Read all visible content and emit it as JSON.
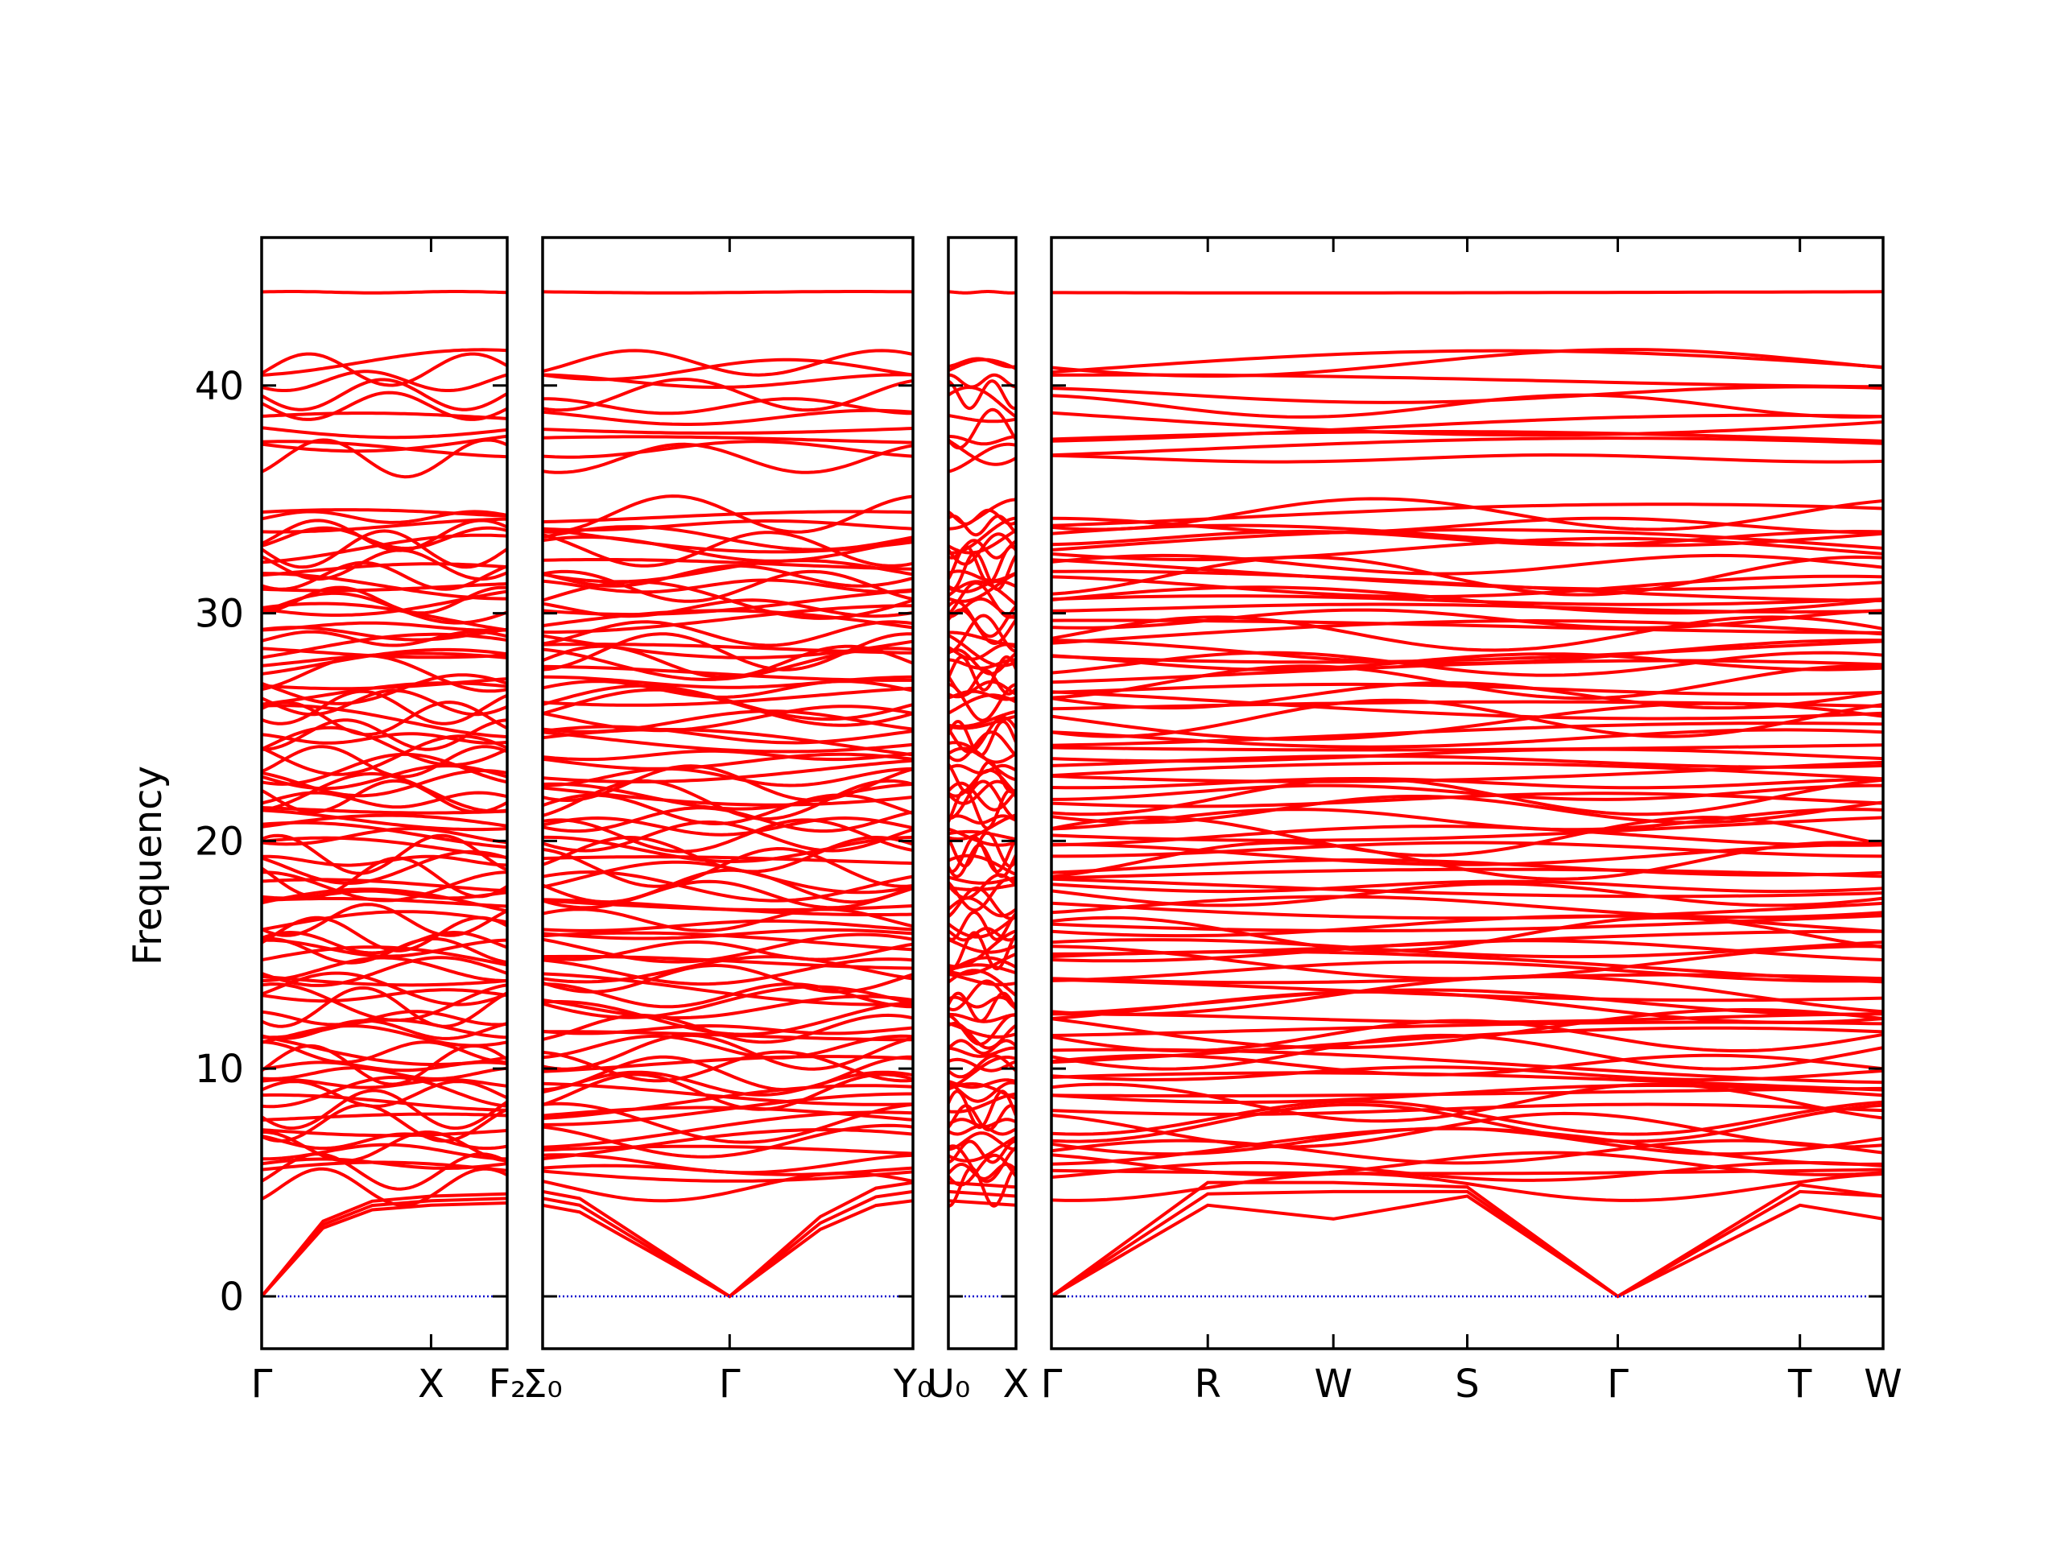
{
  "chart_data": {
    "type": "line",
    "ylabel": "Frequency",
    "ylim": [
      -2.3,
      46.5
    ],
    "yticks": [
      0,
      10,
      20,
      30,
      40
    ],
    "colors": {
      "bands": "#ff0000",
      "zero_line": "#0000cc",
      "frame": "#000000"
    },
    "panels": [
      {
        "xlabels": [
          "Γ",
          "X",
          "F₂"
        ],
        "x": [
          0,
          0.69,
          1.0
        ],
        "band_count": 95,
        "acoustic_end": [
          4.4,
          4.2,
          4.0
        ]
      },
      {
        "xlabels": [
          "Σ₀",
          "Γ",
          "Y₀"
        ],
        "x": [
          0,
          0.505,
          1.0
        ],
        "band_count": 95,
        "acoustic_start": [
          4.6,
          4.3,
          4.0
        ],
        "acoustic_end": [
          5.0,
          4.6,
          4.2
        ]
      },
      {
        "xlabels": [
          "U₀",
          "X"
        ],
        "x": [
          0,
          1.0
        ],
        "band_count": 95
      },
      {
        "xlabels": [
          "Γ",
          "R",
          "W",
          "S",
          "Γ",
          "T",
          "W"
        ],
        "x": [
          0,
          0.188,
          0.339,
          0.5,
          0.681,
          0.9,
          1.0
        ],
        "band_count": 95,
        "acoustic_values": [
          [
            0,
            5.0,
            5.0,
            4.8,
            0,
            4.9,
            4.4
          ],
          [
            0,
            4.5,
            4.6,
            4.6,
            0,
            4.6,
            4.4
          ],
          [
            0,
            4.0,
            3.4,
            4.4,
            0,
            4.0,
            3.4
          ]
        ]
      }
    ],
    "bands": {
      "low_limit": 4.3,
      "high_limit": 44.2,
      "gap": [
        35.6,
        36.5
      ],
      "isolated_top": 44.1
    }
  },
  "axes": {
    "ylabel": "Frequency",
    "ytick_labels": [
      "0",
      "10",
      "20",
      "30",
      "40"
    ],
    "panel_labels": [
      [
        "Γ",
        "X",
        "F₂"
      ],
      [
        "Σ₀",
        "Γ",
        "Y₀"
      ],
      [
        "U₀",
        "X"
      ],
      [
        "Γ",
        "R",
        "W",
        "S",
        "Γ",
        "T",
        "W"
      ]
    ]
  }
}
